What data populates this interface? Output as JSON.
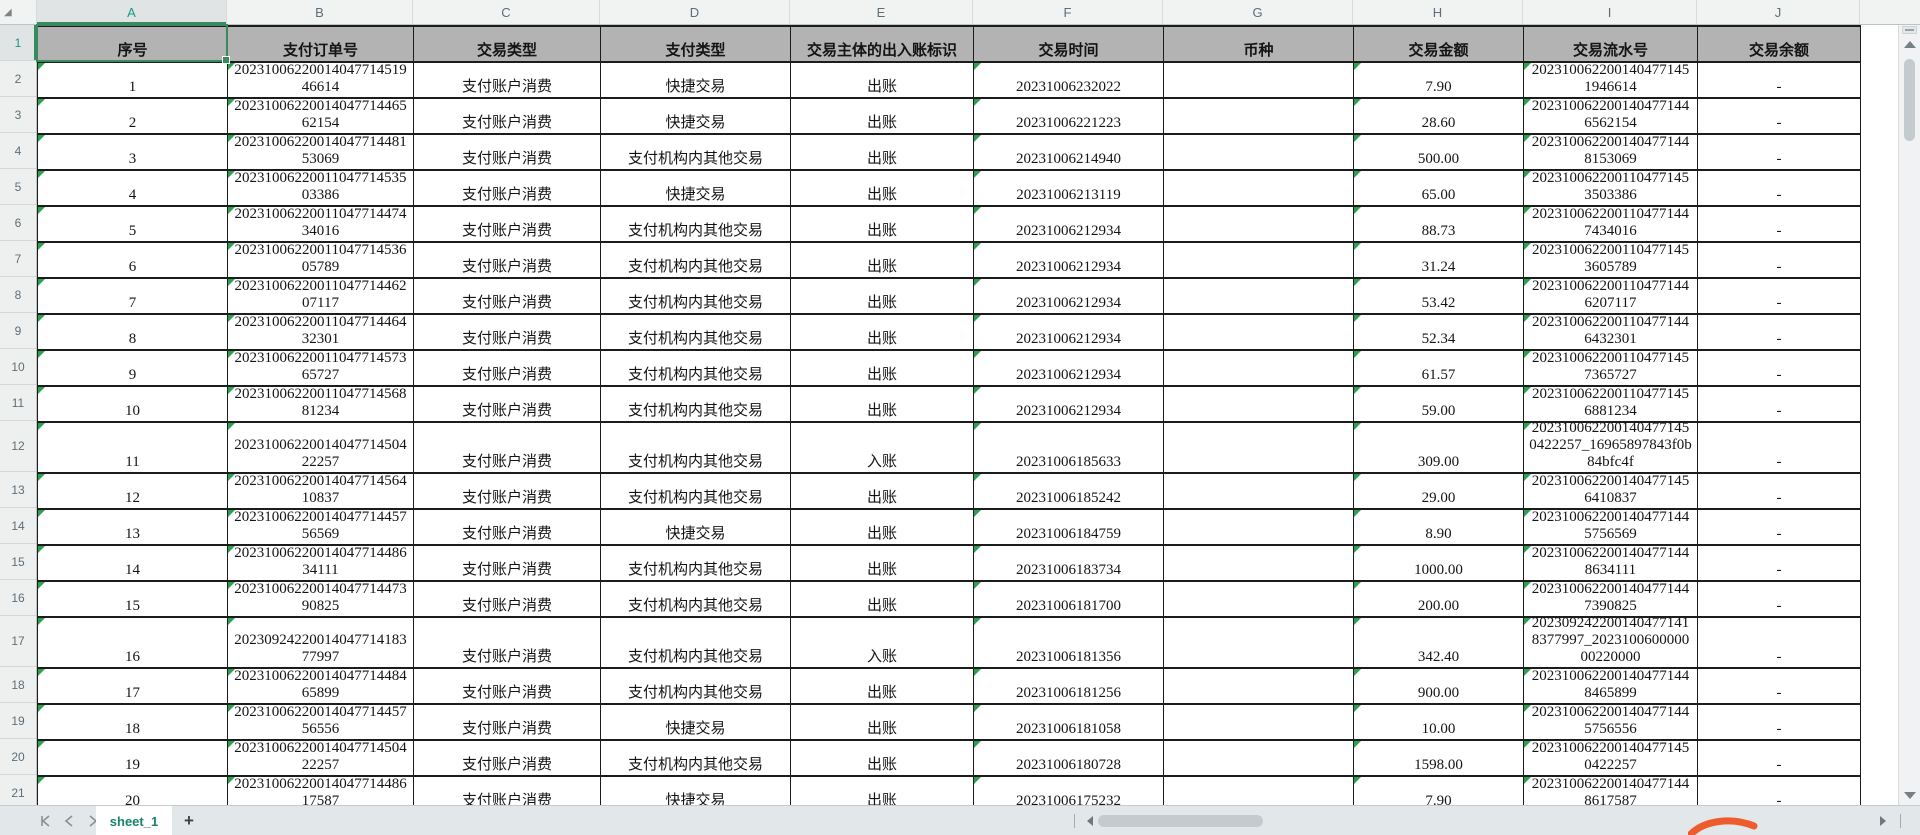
{
  "columns": {
    "letters": [
      "A",
      "B",
      "C",
      "D",
      "E",
      "F",
      "G",
      "H",
      "I",
      "J"
    ]
  },
  "row_numbers": [
    "1",
    "2",
    "3",
    "4",
    "5",
    "6",
    "7",
    "8",
    "9",
    "10",
    "11",
    "12",
    "13",
    "14",
    "15",
    "16",
    "17",
    "18",
    "19",
    "20",
    "21"
  ],
  "selection": {
    "cell": "A1"
  },
  "sheet_tabs": {
    "active": "sheet_1",
    "add_label": "+"
  },
  "icons": {
    "select_all": "◢"
  },
  "colors": {
    "accent_green": "#3a8a5f",
    "tab_text": "#17836c",
    "header_fill": "#b3b3b3",
    "flag_triangle": "#2ca24e",
    "swoosh_orange": "#ee5b2d"
  },
  "table": {
    "headers": [
      "序号",
      "支付订单号",
      "交易类型",
      "支付类型",
      "交易主体的出入账标识",
      "交易时间",
      "币种",
      "交易金额",
      "交易流水号",
      "交易余额"
    ],
    "rows": [
      {
        "seq": "1",
        "order_no": "2023100622001404771451946614",
        "trade_type": "支付账户消费",
        "pay_type": "快捷交易",
        "direction": "出账",
        "time": "20231006232022",
        "currency": "",
        "amount": "7.90",
        "serial": "2023100622001404771451946614",
        "balance": "-"
      },
      {
        "seq": "2",
        "order_no": "2023100622001404771446562154",
        "trade_type": "支付账户消费",
        "pay_type": "快捷交易",
        "direction": "出账",
        "time": "20231006221223",
        "currency": "",
        "amount": "28.60",
        "serial": "2023100622001404771446562154",
        "balance": "-"
      },
      {
        "seq": "3",
        "order_no": "2023100622001404771448153069",
        "trade_type": "支付账户消费",
        "pay_type": "支付机构内其他交易",
        "direction": "出账",
        "time": "20231006214940",
        "currency": "",
        "amount": "500.00",
        "serial": "2023100622001404771448153069",
        "balance": "-"
      },
      {
        "seq": "4",
        "order_no": "2023100622001104771453503386",
        "trade_type": "支付账户消费",
        "pay_type": "快捷交易",
        "direction": "出账",
        "time": "20231006213119",
        "currency": "",
        "amount": "65.00",
        "serial": "2023100622001104771453503386",
        "balance": "-"
      },
      {
        "seq": "5",
        "order_no": "2023100622001104771447434016",
        "trade_type": "支付账户消费",
        "pay_type": "支付机构内其他交易",
        "direction": "出账",
        "time": "20231006212934",
        "currency": "",
        "amount": "88.73",
        "serial": "2023100622001104771447434016",
        "balance": "-"
      },
      {
        "seq": "6",
        "order_no": "2023100622001104771453605789",
        "trade_type": "支付账户消费",
        "pay_type": "支付机构内其他交易",
        "direction": "出账",
        "time": "20231006212934",
        "currency": "",
        "amount": "31.24",
        "serial": "2023100622001104771453605789",
        "balance": "-"
      },
      {
        "seq": "7",
        "order_no": "2023100622001104771446207117",
        "trade_type": "支付账户消费",
        "pay_type": "支付机构内其他交易",
        "direction": "出账",
        "time": "20231006212934",
        "currency": "",
        "amount": "53.42",
        "serial": "2023100622001104771446207117",
        "balance": "-"
      },
      {
        "seq": "8",
        "order_no": "2023100622001104771446432301",
        "trade_type": "支付账户消费",
        "pay_type": "支付机构内其他交易",
        "direction": "出账",
        "time": "20231006212934",
        "currency": "",
        "amount": "52.34",
        "serial": "2023100622001104771446432301",
        "balance": "-"
      },
      {
        "seq": "9",
        "order_no": "2023100622001104771457365727",
        "trade_type": "支付账户消费",
        "pay_type": "支付机构内其他交易",
        "direction": "出账",
        "time": "20231006212934",
        "currency": "",
        "amount": "61.57",
        "serial": "2023100622001104771457365727",
        "balance": "-"
      },
      {
        "seq": "10",
        "order_no": "2023100622001104771456881234",
        "trade_type": "支付账户消费",
        "pay_type": "支付机构内其他交易",
        "direction": "出账",
        "time": "20231006212934",
        "currency": "",
        "amount": "59.00",
        "serial": "2023100622001104771456881234",
        "balance": "-"
      },
      {
        "seq": "11",
        "order_no": "2023100622001404771450422257",
        "trade_type": "支付账户消费",
        "pay_type": "支付机构内其他交易",
        "direction": "入账",
        "time": "20231006185633",
        "currency": "",
        "amount": "309.00",
        "serial": "2023100622001404771450422257_16965897843f0b84bfc4f",
        "balance": "-"
      },
      {
        "seq": "12",
        "order_no": "2023100622001404771456410837",
        "trade_type": "支付账户消费",
        "pay_type": "支付机构内其他交易",
        "direction": "出账",
        "time": "20231006185242",
        "currency": "",
        "amount": "29.00",
        "serial": "2023100622001404771456410837",
        "balance": "-"
      },
      {
        "seq": "13",
        "order_no": "2023100622001404771445756569",
        "trade_type": "支付账户消费",
        "pay_type": "快捷交易",
        "direction": "出账",
        "time": "20231006184759",
        "currency": "",
        "amount": "8.90",
        "serial": "2023100622001404771445756569",
        "balance": "-"
      },
      {
        "seq": "14",
        "order_no": "2023100622001404771448634111",
        "trade_type": "支付账户消费",
        "pay_type": "支付机构内其他交易",
        "direction": "出账",
        "time": "20231006183734",
        "currency": "",
        "amount": "1000.00",
        "serial": "2023100622001404771448634111",
        "balance": "-"
      },
      {
        "seq": "15",
        "order_no": "2023100622001404771447390825",
        "trade_type": "支付账户消费",
        "pay_type": "支付机构内其他交易",
        "direction": "出账",
        "time": "20231006181700",
        "currency": "",
        "amount": "200.00",
        "serial": "2023100622001404771447390825",
        "balance": "-"
      },
      {
        "seq": "16",
        "order_no": "2023092422001404771418377997",
        "trade_type": "支付账户消费",
        "pay_type": "支付机构内其他交易",
        "direction": "入账",
        "time": "20231006181356",
        "currency": "",
        "amount": "342.40",
        "serial": "2023092422001404771418377997_202310060000000220000",
        "balance": "-"
      },
      {
        "seq": "17",
        "order_no": "2023100622001404771448465899",
        "trade_type": "支付账户消费",
        "pay_type": "支付机构内其他交易",
        "direction": "出账",
        "time": "20231006181256",
        "currency": "",
        "amount": "900.00",
        "serial": "2023100622001404771448465899",
        "balance": "-"
      },
      {
        "seq": "18",
        "order_no": "2023100622001404771445756556",
        "trade_type": "支付账户消费",
        "pay_type": "快捷交易",
        "direction": "出账",
        "time": "20231006181058",
        "currency": "",
        "amount": "10.00",
        "serial": "2023100622001404771445756556",
        "balance": "-"
      },
      {
        "seq": "19",
        "order_no": "2023100622001404771450422257",
        "trade_type": "支付账户消费",
        "pay_type": "支付机构内其他交易",
        "direction": "出账",
        "time": "20231006180728",
        "currency": "",
        "amount": "1598.00",
        "serial": "2023100622001404771450422257",
        "balance": "-"
      },
      {
        "seq": "20",
        "order_no": "2023100622001404771448617587",
        "trade_type": "支付账户消费",
        "pay_type": "快捷交易",
        "direction": "出账",
        "time": "20231006175232",
        "currency": "",
        "amount": "7.90",
        "serial": "2023100622001404771448617587",
        "balance": "-"
      }
    ]
  }
}
